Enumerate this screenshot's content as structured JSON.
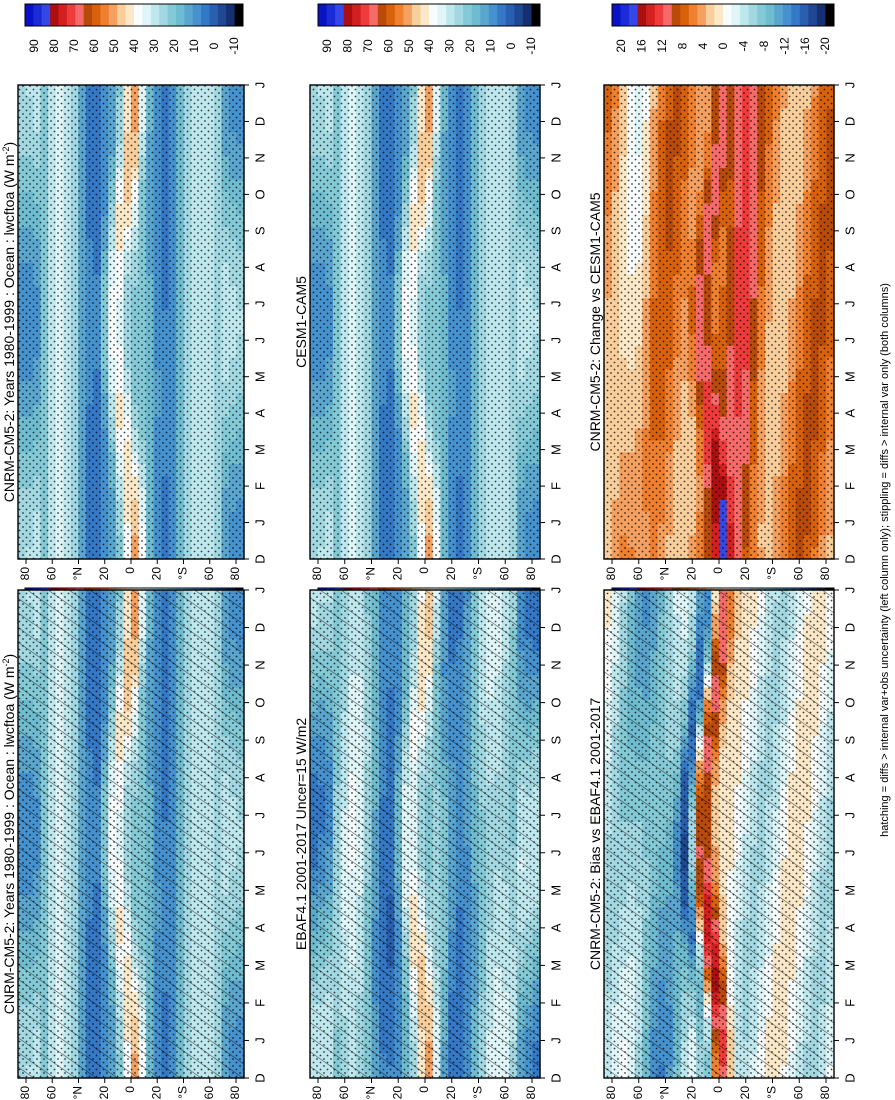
{
  "figure": {
    "footnote": "hatching = diffs > internal var+obs uncertainty (left column only); stippling = diffs > internal var only (both columns)"
  },
  "colors": {
    "palette_main": [
      "#0a12c8",
      "#1c2bd8",
      "#3547e6",
      "#aa1010",
      "#d42020",
      "#ee3b3b",
      "#f66a6a",
      "#b84a0a",
      "#d8620c",
      "#ee8030",
      "#f4a060",
      "#f8cf9c",
      "#fbe8c8",
      "#f8fcfc",
      "#dff5f7",
      "#bfe8ee",
      "#a2d8e2",
      "#84cad6",
      "#6fbcd0",
      "#5aa6cf",
      "#4592cf",
      "#3478c6",
      "#2a5fb0",
      "#1f4892",
      "#152f70",
      "#000000"
    ],
    "palette_diff": [
      "#0a12c8",
      "#1c2bd8",
      "#3547e6",
      "#aa1010",
      "#d42020",
      "#ee3b3b",
      "#f66a6a",
      "#b84a0a",
      "#d8620c",
      "#ee8030",
      "#f4a060",
      "#f8cf9c",
      "#fbe8c8",
      "#f8fcfc",
      "#dff5f7",
      "#bfe8ee",
      "#a2d8e2",
      "#84cad6",
      "#6fbcd0",
      "#5aa6cf",
      "#4592cf",
      "#3478c6",
      "#2a5fb0",
      "#1f4892",
      "#152f70",
      "#000000"
    ]
  },
  "chart_data": [
    {
      "type": "heatmap",
      "panel": "left-top",
      "title": "CNRM-CM5-2: Years 1980-1999 : Ocean : lwcftoa (W m",
      "title_superscript": "-2",
      "title_tail": ")",
      "x_ticks": [
        "D",
        "J",
        "F",
        "M",
        "A",
        "M",
        "J",
        "J",
        "A",
        "S",
        "O",
        "N",
        "D",
        "J"
      ],
      "y_ticks": [
        "80",
        "60",
        "°N",
        "20",
        "0",
        "20",
        "°S",
        "60",
        "80"
      ],
      "colorbar_ticks": [
        "90",
        "80",
        "70",
        "60",
        "50",
        "40",
        "30",
        "20",
        "10",
        "0",
        "-10"
      ],
      "hatching": true,
      "stippling": true,
      "field": "model"
    },
    {
      "type": "heatmap",
      "panel": "right-top",
      "title": "CNRM-CM5-2: Years 1980-1999 : Ocean : lwcftoa (W m",
      "title_superscript": "-2",
      "title_tail": ")",
      "x_ticks": [
        "D",
        "J",
        "F",
        "M",
        "A",
        "M",
        "J",
        "J",
        "A",
        "S",
        "O",
        "N",
        "D",
        "J"
      ],
      "y_ticks": [
        "80",
        "60",
        "°N",
        "20",
        "0",
        "20",
        "°S",
        "60",
        "80"
      ],
      "colorbar_ticks": [
        "90",
        "80",
        "70",
        "60",
        "50",
        "40",
        "30",
        "20",
        "10",
        "0",
        "-10"
      ],
      "hatching": false,
      "stippling": true,
      "field": "model"
    },
    {
      "type": "heatmap",
      "panel": "left-middle",
      "title": "EBAF4.1 2001-2017 Uncer=15 W/m2",
      "x_ticks": [
        "D",
        "J",
        "F",
        "M",
        "A",
        "M",
        "J",
        "J",
        "A",
        "S",
        "O",
        "N",
        "D",
        "J"
      ],
      "y_ticks": [
        "80",
        "60",
        "°N",
        "20",
        "0",
        "20",
        "°S",
        "60",
        "80"
      ],
      "colorbar_ticks": [
        "90",
        "80",
        "70",
        "60",
        "50",
        "40",
        "30",
        "20",
        "10",
        "0",
        "-10"
      ],
      "hatching": true,
      "stippling": true,
      "field": "obs"
    },
    {
      "type": "heatmap",
      "panel": "right-middle",
      "title": "CESM1-CAM5",
      "x_ticks": [
        "D",
        "J",
        "F",
        "M",
        "A",
        "M",
        "J",
        "J",
        "A",
        "S",
        "O",
        "N",
        "D",
        "J"
      ],
      "y_ticks": [
        "80",
        "60",
        "°N",
        "20",
        "0",
        "20",
        "°S",
        "60",
        "80"
      ],
      "colorbar_ticks": [
        "90",
        "80",
        "70",
        "60",
        "50",
        "40",
        "30",
        "20",
        "10",
        "0",
        "-10"
      ],
      "hatching": false,
      "stippling": true,
      "field": "model"
    },
    {
      "type": "heatmap",
      "panel": "left-bottom",
      "title": "CNRM-CM5-2: Bias vs EBAF4.1 2001-2017",
      "x_ticks": [
        "D",
        "J",
        "F",
        "M",
        "A",
        "M",
        "J",
        "J",
        "A",
        "S",
        "O",
        "N",
        "D",
        "J"
      ],
      "y_ticks": [
        "80",
        "60",
        "°N",
        "20",
        "0",
        "20",
        "°S",
        "60",
        "80"
      ],
      "colorbar_ticks": [
        "20",
        "16",
        "12",
        "8",
        "4",
        "0",
        "-4",
        "-8",
        "-12",
        "-16",
        "-20"
      ],
      "hatching": true,
      "stippling": true,
      "field": "bias"
    },
    {
      "type": "heatmap",
      "panel": "right-bottom",
      "title": "CNRM-CM5-2: Change vs CESM1-CAM5",
      "x_ticks": [
        "D",
        "J",
        "F",
        "M",
        "A",
        "M",
        "J",
        "J",
        "A",
        "S",
        "O",
        "N",
        "D",
        "J"
      ],
      "y_ticks": [
        "80",
        "60",
        "°N",
        "20",
        "0",
        "20",
        "°S",
        "60",
        "80"
      ],
      "colorbar_ticks": [
        "20",
        "16",
        "12",
        "8",
        "4",
        "0",
        "-4",
        "-8",
        "-12",
        "-16",
        "-20"
      ],
      "hatching": false,
      "stippling": true,
      "field": "change"
    }
  ]
}
